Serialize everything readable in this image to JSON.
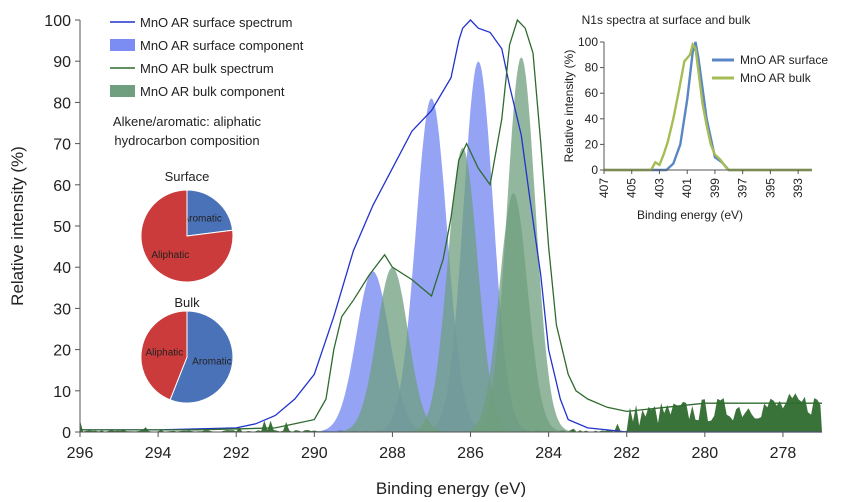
{
  "chart_data": [
    {
      "type": "area",
      "title": "",
      "xlabel": "Binding energy (eV)",
      "ylabel": "Relative intensity (%)",
      "xlim": [
        296,
        277
      ],
      "ylim": [
        0,
        100
      ],
      "x_reversed": true,
      "x_ticks": [
        296,
        294,
        292,
        290,
        288,
        286,
        284,
        282,
        280,
        278
      ],
      "y_ticks": [
        0,
        10,
        20,
        30,
        40,
        50,
        60,
        70,
        80,
        90,
        100
      ],
      "grid": false,
      "legend_position": "top-left",
      "series": [
        {
          "name": "MnO AR surface spectrum",
          "kind": "line",
          "color": "#2233cc",
          "points": [
            [
              296,
              0.5
            ],
            [
              294,
              0.5
            ],
            [
              292,
              1
            ],
            [
              291.5,
              2
            ],
            [
              291,
              4
            ],
            [
              290.5,
              8
            ],
            [
              290,
              14
            ],
            [
              289.5,
              28
            ],
            [
              289,
              44
            ],
            [
              288.5,
              55
            ],
            [
              288,
              64
            ],
            [
              287.5,
              73
            ],
            [
              287,
              78
            ],
            [
              286.5,
              86
            ],
            [
              286.3,
              95
            ],
            [
              286.2,
              98
            ],
            [
              286,
              100
            ],
            [
              285.8,
              98
            ],
            [
              285.5,
              97
            ],
            [
              285.2,
              93
            ],
            [
              285,
              84
            ],
            [
              284.7,
              72
            ],
            [
              284.5,
              58
            ],
            [
              284.2,
              38
            ],
            [
              284,
              20
            ],
            [
              283.7,
              8
            ],
            [
              283.5,
              3
            ],
            [
              283,
              1
            ],
            [
              282.5,
              0.5
            ],
            [
              282,
              0
            ],
            [
              277,
              0
            ]
          ]
        },
        {
          "name": "MnO AR surface component",
          "kind": "area",
          "color": "#7b8cf2",
          "peaks": [
            {
              "center": 288.5,
              "height": 39,
              "sigma": 0.42
            },
            {
              "center": 287.0,
              "height": 81,
              "sigma": 0.4
            },
            {
              "center": 285.8,
              "height": 90,
              "sigma": 0.38
            }
          ]
        },
        {
          "name": "MnO AR bulk spectrum",
          "kind": "line",
          "color": "#2f6b2f",
          "points": [
            [
              296,
              0.5
            ],
            [
              293,
              0.5
            ],
            [
              291,
              1
            ],
            [
              290.5,
              2
            ],
            [
              290,
              3
            ],
            [
              289.7,
              8
            ],
            [
              289.5,
              20
            ],
            [
              289.3,
              28
            ],
            [
              289,
              32
            ],
            [
              288.6,
              38
            ],
            [
              288.2,
              43
            ],
            [
              288,
              40
            ],
            [
              287.5,
              37
            ],
            [
              287,
              33
            ],
            [
              286.7,
              42
            ],
            [
              286.5,
              52
            ],
            [
              286.3,
              66
            ],
            [
              286.1,
              70
            ],
            [
              285.8,
              64
            ],
            [
              285.5,
              60
            ],
            [
              285.2,
              76
            ],
            [
              285,
              94
            ],
            [
              284.8,
              100
            ],
            [
              284.6,
              98
            ],
            [
              284.4,
              92
            ],
            [
              284.2,
              70
            ],
            [
              284,
              45
            ],
            [
              283.8,
              26
            ],
            [
              283.5,
              14
            ],
            [
              283.3,
              10
            ],
            [
              283,
              8
            ],
            [
              282.5,
              6
            ],
            [
              282,
              5
            ],
            [
              281,
              6
            ],
            [
              280,
              7
            ],
            [
              279,
              7
            ],
            [
              278,
              7
            ],
            [
              277,
              7
            ]
          ]
        },
        {
          "name": "MnO AR bulk component",
          "kind": "area",
          "color": "#6f9f7e",
          "peaks": [
            {
              "center": 288.0,
              "height": 40,
              "sigma": 0.4
            },
            {
              "center": 286.2,
              "height": 69,
              "sigma": 0.38
            },
            {
              "center": 284.9,
              "height": 58,
              "sigma": 0.36
            },
            {
              "center": 284.7,
              "height": 91,
              "sigma": 0.36
            }
          ]
        }
      ],
      "noise_background": {
        "color": "#2f6b2f",
        "baseline_region": [
          296,
          282
        ],
        "baseline_level": 0.5,
        "tail_region": [
          282,
          277
        ],
        "tail_level": 7
      }
    },
    {
      "type": "pie",
      "title": "Surface",
      "slices": [
        {
          "label": "Aromatic",
          "value": 23,
          "color": "#4a72b8"
        },
        {
          "label": "Aliphatic",
          "value": 77,
          "color": "#cc3b3b"
        }
      ]
    },
    {
      "type": "pie",
      "title": "Bulk",
      "slices": [
        {
          "label": "Aromatic",
          "value": 56,
          "color": "#4a72b8"
        },
        {
          "label": "Aliphatic",
          "value": 44,
          "color": "#cc3b3b"
        }
      ]
    },
    {
      "type": "line",
      "title": "N1s spectra at surface and bulk",
      "xlabel": "Binding energy (eV)",
      "ylabel": "Relative intensity (%)",
      "xlim": [
        407,
        392
      ],
      "ylim": [
        0,
        100
      ],
      "x_reversed": true,
      "x_ticks": [
        407,
        405,
        403,
        401,
        399,
        397,
        395,
        393
      ],
      "y_ticks": [
        0,
        20,
        40,
        60,
        80,
        100
      ],
      "legend_position": "right",
      "series": [
        {
          "name": "MnO AR surface",
          "color": "#5b86c4",
          "points": [
            [
              407,
              0
            ],
            [
              402.5,
              0
            ],
            [
              402,
              5
            ],
            [
              401.5,
              20
            ],
            [
              401,
              55
            ],
            [
              400.6,
              92
            ],
            [
              400.4,
              100
            ],
            [
              400.2,
              88
            ],
            [
              400,
              72
            ],
            [
              399.6,
              40
            ],
            [
              399.3,
              25
            ],
            [
              399,
              10
            ],
            [
              398.5,
              6
            ],
            [
              398,
              0
            ],
            [
              392,
              0
            ]
          ]
        },
        {
          "name": "MnO AR bulk",
          "color": "#a6bd55",
          "points": [
            [
              407,
              0
            ],
            [
              403.6,
              0
            ],
            [
              403.3,
              6
            ],
            [
              403,
              4
            ],
            [
              402.7,
              12
            ],
            [
              402.4,
              22
            ],
            [
              402,
              40
            ],
            [
              401.6,
              62
            ],
            [
              401.2,
              85
            ],
            [
              400.8,
              90
            ],
            [
              400.6,
              98
            ],
            [
              400.4,
              95
            ],
            [
              400.2,
              78
            ],
            [
              399.9,
              52
            ],
            [
              399.6,
              35
            ],
            [
              399.3,
              20
            ],
            [
              399,
              12
            ],
            [
              398.6,
              8
            ],
            [
              398.2,
              2
            ],
            [
              398,
              0
            ],
            [
              392,
              0
            ]
          ]
        }
      ]
    }
  ],
  "main_legend": [
    {
      "label": "MnO AR surface spectrum",
      "kind": "line",
      "color": "#2233cc"
    },
    {
      "label": "MnO AR surface component",
      "kind": "patch",
      "color": "#7b8cf2"
    },
    {
      "label": "MnO AR bulk spectrum",
      "kind": "line",
      "color": "#2f6b2f"
    },
    {
      "label": "MnO AR bulk component",
      "kind": "patch",
      "color": "#6f9f7e"
    }
  ],
  "pie_caption": [
    "Alkene/aromatic: aliphatic",
    "hydrocarbon composition"
  ]
}
